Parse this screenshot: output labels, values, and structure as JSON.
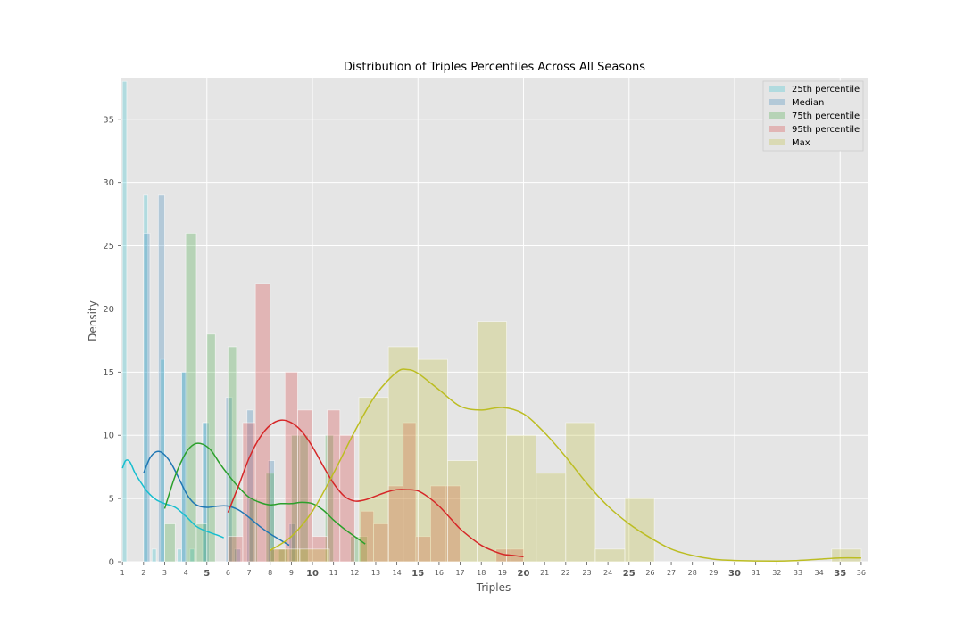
{
  "chart_data": {
    "type": "histogram",
    "title": "Distribution of Triples Percentiles Across All Seasons",
    "xlabel": "Triples",
    "ylabel": "Density",
    "xlim": [
      0.95,
      36.3
    ],
    "ylim": [
      0,
      38.3
    ],
    "x_ticks": [
      1,
      2,
      3,
      4,
      5,
      6,
      7,
      8,
      9,
      10,
      11,
      12,
      13,
      14,
      15,
      16,
      17,
      18,
      19,
      20,
      21,
      22,
      23,
      24,
      25,
      26,
      27,
      28,
      29,
      30,
      31,
      32,
      33,
      34,
      35,
      36
    ],
    "x_major_ticks": [
      5,
      10,
      15,
      20,
      25,
      30,
      35
    ],
    "y_ticks": [
      0,
      5,
      10,
      15,
      20,
      25,
      30,
      35
    ],
    "grid": true,
    "legend_position": "top-right",
    "series": [
      {
        "name": "25th percentile",
        "color": "#17becf",
        "bins": [
          [
            1.0,
            1.2,
            38
          ],
          [
            2.0,
            2.2,
            29
          ],
          [
            2.4,
            2.6,
            1
          ],
          [
            2.8,
            3.0,
            16
          ],
          [
            3.6,
            3.8,
            1
          ],
          [
            3.8,
            4.0,
            15
          ],
          [
            4.2,
            4.4,
            1
          ],
          [
            4.8,
            5.0,
            11
          ]
        ],
        "kde": [
          [
            1.0,
            7.4
          ],
          [
            1.15,
            8.0
          ],
          [
            1.35,
            7.9
          ],
          [
            1.6,
            7.0
          ],
          [
            1.9,
            6.2
          ],
          [
            2.2,
            5.5
          ],
          [
            2.6,
            4.9
          ],
          [
            3.0,
            4.6
          ],
          [
            3.5,
            4.3
          ],
          [
            4.0,
            3.6
          ],
          [
            4.5,
            2.8
          ],
          [
            5.0,
            2.4
          ],
          [
            5.5,
            2.1
          ],
          [
            5.8,
            1.9
          ]
        ]
      },
      {
        "name": "Median",
        "color": "#1f77b4",
        "bins": [
          [
            2.0,
            2.3,
            26
          ],
          [
            2.7,
            3.0,
            29
          ],
          [
            3.8,
            4.1,
            15
          ],
          [
            4.8,
            5.1,
            11
          ],
          [
            5.9,
            6.2,
            13
          ],
          [
            6.3,
            6.6,
            1
          ],
          [
            6.9,
            7.2,
            12
          ],
          [
            7.9,
            8.2,
            8
          ],
          [
            8.9,
            9.2,
            3
          ]
        ],
        "kde": [
          [
            2.0,
            7.0
          ],
          [
            2.3,
            8.2
          ],
          [
            2.6,
            8.7
          ],
          [
            2.9,
            8.6
          ],
          [
            3.3,
            7.8
          ],
          [
            3.7,
            6.5
          ],
          [
            4.1,
            5.2
          ],
          [
            4.5,
            4.5
          ],
          [
            5.0,
            4.3
          ],
          [
            5.5,
            4.4
          ],
          [
            6.0,
            4.4
          ],
          [
            6.5,
            4.1
          ],
          [
            7.0,
            3.5
          ],
          [
            7.5,
            2.8
          ],
          [
            8.0,
            2.2
          ],
          [
            8.5,
            1.7
          ],
          [
            8.9,
            1.3
          ]
        ]
      },
      {
        "name": "75th percentile",
        "color": "#2ca02c",
        "bins": [
          [
            3.0,
            3.5,
            3
          ],
          [
            4.0,
            4.5,
            26
          ],
          [
            4.5,
            5.0,
            3
          ],
          [
            5.0,
            5.4,
            18
          ],
          [
            6.0,
            6.4,
            17
          ],
          [
            7.0,
            7.4,
            5
          ],
          [
            7.8,
            8.2,
            7
          ],
          [
            8.4,
            8.8,
            1
          ],
          [
            9.0,
            9.4,
            10
          ],
          [
            9.4,
            9.8,
            10
          ],
          [
            10.6,
            11.0,
            10
          ],
          [
            11.8,
            12.2,
            2
          ],
          [
            12.2,
            12.6,
            2
          ]
        ],
        "kde": [
          [
            3.0,
            4.2
          ],
          [
            3.5,
            6.8
          ],
          [
            4.0,
            8.6
          ],
          [
            4.4,
            9.3
          ],
          [
            4.8,
            9.3
          ],
          [
            5.2,
            8.8
          ],
          [
            5.6,
            7.8
          ],
          [
            6.0,
            6.9
          ],
          [
            6.5,
            5.9
          ],
          [
            7.0,
            5.1
          ],
          [
            7.5,
            4.7
          ],
          [
            8.0,
            4.5
          ],
          [
            8.5,
            4.6
          ],
          [
            9.0,
            4.6
          ],
          [
            9.5,
            4.7
          ],
          [
            10.0,
            4.6
          ],
          [
            10.5,
            4.1
          ],
          [
            11.0,
            3.3
          ],
          [
            11.5,
            2.6
          ],
          [
            12.0,
            2.0
          ],
          [
            12.5,
            1.4
          ]
        ]
      },
      {
        "name": "95th percentile",
        "color": "#d62728",
        "bins": [
          [
            6.0,
            6.7,
            2
          ],
          [
            6.7,
            7.3,
            11
          ],
          [
            7.3,
            8.0,
            22
          ],
          [
            8.0,
            8.7,
            1
          ],
          [
            8.7,
            9.3,
            15
          ],
          [
            9.3,
            10.0,
            12
          ],
          [
            10.0,
            10.7,
            2
          ],
          [
            10.7,
            11.3,
            12
          ],
          [
            11.3,
            12.0,
            10
          ],
          [
            12.3,
            12.9,
            4
          ],
          [
            12.9,
            13.6,
            3
          ],
          [
            13.6,
            14.3,
            6
          ],
          [
            14.3,
            14.9,
            11
          ],
          [
            14.9,
            15.6,
            2
          ],
          [
            15.6,
            16.3,
            6
          ],
          [
            16.3,
            17.0,
            6
          ],
          [
            18.7,
            19.4,
            1
          ],
          [
            19.4,
            20.0,
            1
          ]
        ],
        "kde": [
          [
            6.0,
            3.9
          ],
          [
            6.5,
            6.0
          ],
          [
            7.0,
            8.2
          ],
          [
            7.5,
            9.8
          ],
          [
            8.0,
            10.8
          ],
          [
            8.5,
            11.2
          ],
          [
            9.0,
            11.0
          ],
          [
            9.5,
            10.3
          ],
          [
            10.0,
            9.1
          ],
          [
            10.5,
            7.6
          ],
          [
            11.0,
            6.2
          ],
          [
            11.5,
            5.2
          ],
          [
            12.0,
            4.8
          ],
          [
            12.5,
            4.9
          ],
          [
            13.0,
            5.2
          ],
          [
            13.5,
            5.5
          ],
          [
            14.0,
            5.7
          ],
          [
            14.5,
            5.7
          ],
          [
            15.0,
            5.6
          ],
          [
            15.5,
            5.1
          ],
          [
            16.0,
            4.4
          ],
          [
            16.5,
            3.5
          ],
          [
            17.0,
            2.6
          ],
          [
            17.5,
            1.9
          ],
          [
            18.0,
            1.3
          ],
          [
            18.5,
            0.9
          ],
          [
            19.0,
            0.6
          ],
          [
            19.5,
            0.5
          ],
          [
            20.0,
            0.4
          ]
        ]
      },
      {
        "name": "Max",
        "color": "#bcbd22",
        "bins": [
          [
            8.0,
            9.4,
            1
          ],
          [
            9.4,
            10.8,
            1
          ],
          [
            12.2,
            13.6,
            13
          ],
          [
            13.6,
            15.0,
            17
          ],
          [
            15.0,
            16.4,
            16
          ],
          [
            16.4,
            17.8,
            8
          ],
          [
            17.8,
            19.2,
            19
          ],
          [
            19.2,
            20.6,
            10
          ],
          [
            20.6,
            22.0,
            7
          ],
          [
            22.0,
            23.4,
            11
          ],
          [
            23.4,
            24.8,
            1
          ],
          [
            24.8,
            26.2,
            5
          ],
          [
            34.6,
            36.0,
            1
          ]
        ],
        "kde": [
          [
            8.0,
            0.9
          ],
          [
            9.0,
            2.0
          ],
          [
            10.0,
            4.0
          ],
          [
            11.0,
            7.0
          ],
          [
            12.0,
            10.3
          ],
          [
            13.0,
            13.2
          ],
          [
            14.0,
            15.0
          ],
          [
            14.5,
            15.2
          ],
          [
            15.0,
            14.9
          ],
          [
            16.0,
            13.6
          ],
          [
            17.0,
            12.3
          ],
          [
            18.0,
            12.0
          ],
          [
            19.0,
            12.2
          ],
          [
            20.0,
            11.7
          ],
          [
            21.0,
            10.2
          ],
          [
            22.0,
            8.3
          ],
          [
            23.0,
            6.2
          ],
          [
            24.0,
            4.4
          ],
          [
            25.0,
            3.0
          ],
          [
            26.0,
            1.9
          ],
          [
            27.0,
            1.0
          ],
          [
            28.0,
            0.5
          ],
          [
            29.0,
            0.2
          ],
          [
            30.0,
            0.1
          ],
          [
            32.0,
            0.05
          ],
          [
            33.0,
            0.1
          ],
          [
            34.0,
            0.2
          ],
          [
            35.0,
            0.3
          ],
          [
            36.0,
            0.3
          ]
        ]
      }
    ]
  }
}
